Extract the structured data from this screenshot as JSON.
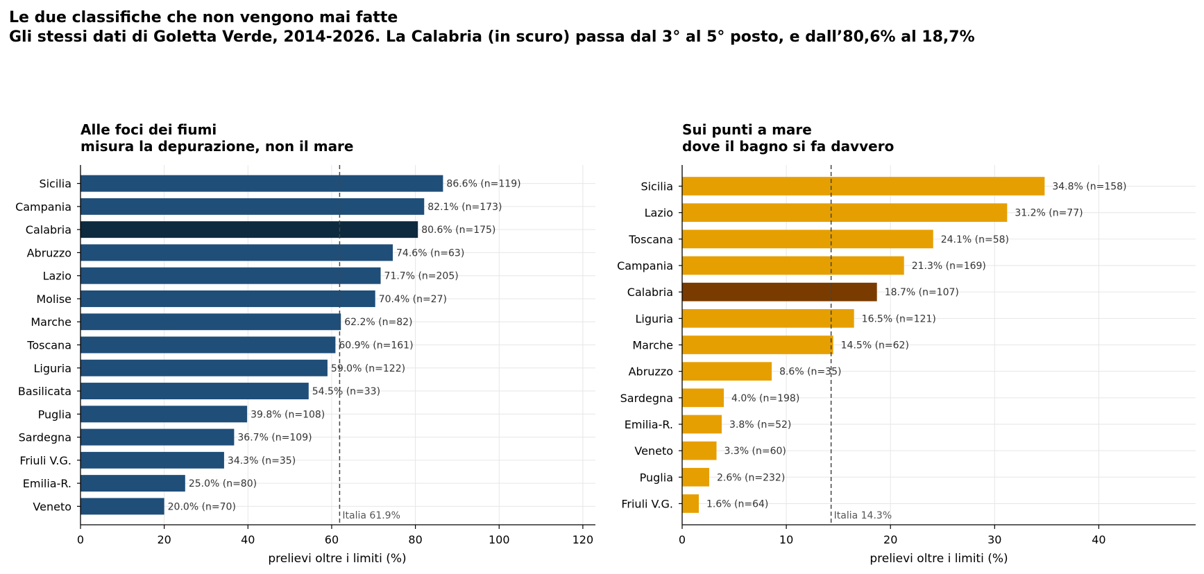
{
  "figure": {
    "title_line1": "Le due classifiche che non vengono mai fatte",
    "title_line2": "Gli stessi dati di Goletta Verde, 2014-2026. La Calabria (in scuro) passa dal 3° al 5° posto, e dall’80,6% al 18,7%"
  },
  "chart_data": [
    {
      "type": "bar",
      "orientation": "horizontal",
      "title_line1": "Alle foci dei fiumi",
      "title_line2": "misura la depurazione, non il mare",
      "xlabel": "prelievi oltre i limiti (%)",
      "xlim": [
        0,
        123
      ],
      "xticks": [
        0,
        20,
        40,
        60,
        80,
        100,
        120
      ],
      "grid": true,
      "bar_color": "#1f4e79",
      "highlight_color": "#0d2a3f",
      "highlight": "Calabria",
      "reference": {
        "value": 61.9,
        "label": "Italia 61.9%"
      },
      "categories": [
        "Sicilia",
        "Campania",
        "Calabria",
        "Abruzzo",
        "Lazio",
        "Molise",
        "Marche",
        "Toscana",
        "Liguria",
        "Basilicata",
        "Puglia",
        "Sardegna",
        "Friuli V.G.",
        "Emilia-R.",
        "Veneto"
      ],
      "values": [
        86.6,
        82.1,
        80.6,
        74.6,
        71.7,
        70.4,
        62.2,
        60.9,
        59.0,
        54.5,
        39.8,
        36.7,
        34.3,
        25.0,
        20.0
      ],
      "bar_labels": [
        "86.6%  (n=119)",
        "82.1%  (n=173)",
        "80.6%  (n=175)",
        "74.6%  (n=63)",
        "71.7%  (n=205)",
        "70.4%  (n=27)",
        "62.2%  (n=82)",
        "60.9%  (n=161)",
        "59.0%  (n=122)",
        "54.5%  (n=33)",
        "39.8%  (n=108)",
        "36.7%  (n=109)",
        "34.3%  (n=35)",
        "25.0%  (n=80)",
        "20.0%  (n=70)"
      ]
    },
    {
      "type": "bar",
      "orientation": "horizontal",
      "title_line1": "Sui punti a mare",
      "title_line2": "dove il bagno si fa davvero",
      "xlabel": "prelievi oltre i limiti (%)",
      "xlim": [
        0,
        49.3
      ],
      "xticks": [
        0,
        10,
        20,
        30,
        40
      ],
      "grid": true,
      "bar_color": "#e69f00",
      "highlight_color": "#7a3b00",
      "highlight": "Calabria",
      "reference": {
        "value": 14.3,
        "label": "Italia 14.3%"
      },
      "categories": [
        "Sicilia",
        "Lazio",
        "Toscana",
        "Campania",
        "Calabria",
        "Liguria",
        "Marche",
        "Abruzzo",
        "Sardegna",
        "Emilia-R.",
        "Veneto",
        "Puglia",
        "Friuli V.G."
      ],
      "values": [
        34.8,
        31.2,
        24.1,
        21.3,
        18.7,
        16.5,
        14.5,
        8.6,
        4.0,
        3.8,
        3.3,
        2.6,
        1.6
      ],
      "bar_labels": [
        "34.8%  (n=158)",
        "31.2%  (n=77)",
        "24.1%  (n=58)",
        "21.3%  (n=169)",
        "18.7%  (n=107)",
        "16.5%  (n=121)",
        "14.5%  (n=62)",
        "8.6%  (n=35)",
        "4.0%  (n=198)",
        "3.8%  (n=52)",
        "3.3%  (n=60)",
        "2.6%  (n=232)",
        "1.6%  (n=64)"
      ]
    }
  ]
}
